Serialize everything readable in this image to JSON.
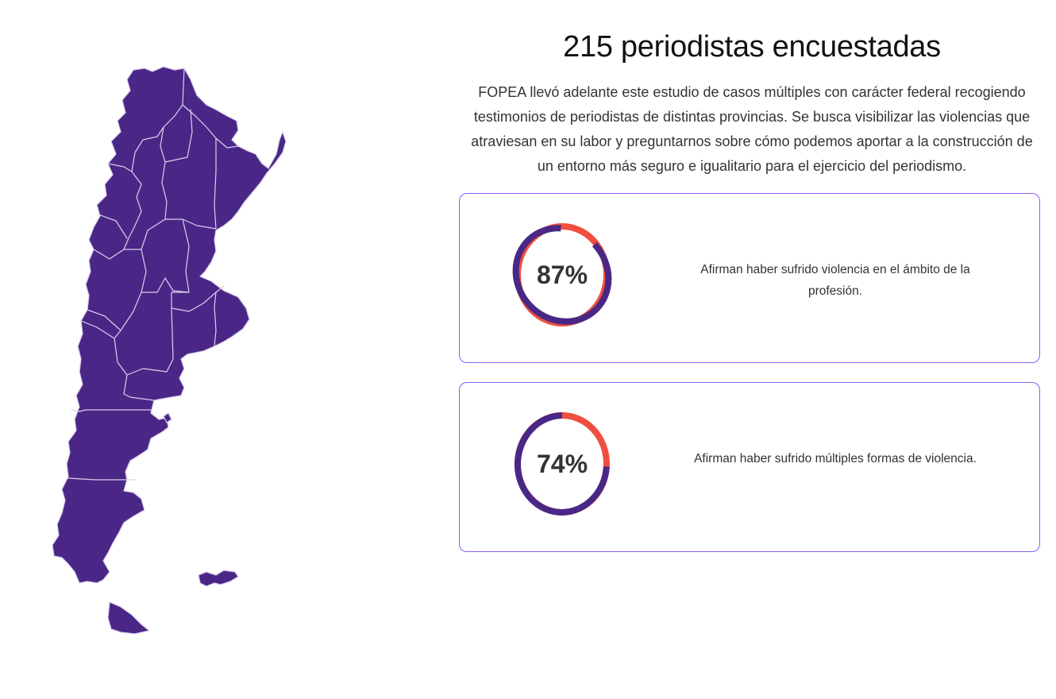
{
  "title": "215 periodistas encuestadas",
  "intro": "FOPEA llevó adelante este estudio de casos múltiples con carácter federal recogiendo testimonios de periodistas de distintas provincias. Se busca visibilizar las violencias que atraviesan en su labor y preguntarnos sobre cómo podemos aportar a la construcción de un entorno más seguro e igualitario para el ejercicio del periodismo.",
  "map": {
    "icon": "argentina-map-icon",
    "fill": "#4a2787",
    "border": "#d9d0ec"
  },
  "stats": [
    {
      "value": 87,
      "label": "87%",
      "text": "Afirman haber sufrido violencia en el ámbito de la profesión."
    },
    {
      "value": 74,
      "label": "74%",
      "text": "Afirman haber sufrido múltiples formas de violencia."
    }
  ],
  "colors": {
    "ring": "#4a2787",
    "remainder": "#f04e3e",
    "card_border": "#8b5cf6"
  }
}
